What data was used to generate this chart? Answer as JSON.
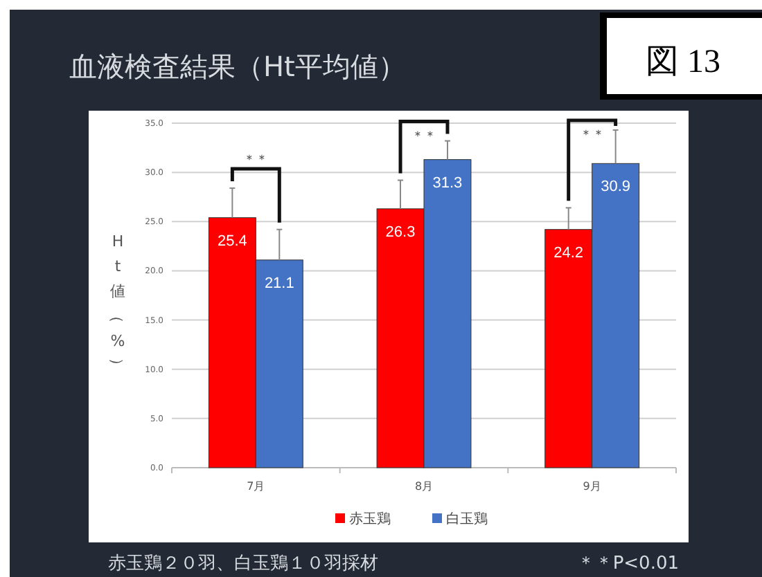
{
  "chart_data": {
    "type": "bar",
    "title": "血液検査結果（Ht平均値）",
    "ylabel": "Ht値（%）",
    "categories": [
      "7月",
      "8月",
      "9月"
    ],
    "series": [
      {
        "name": "赤玉鶏",
        "color": "#ff0000",
        "values": [
          25.4,
          26.3,
          24.2
        ],
        "errors": [
          [
            25.4,
            28.4
          ],
          [
            26.3,
            29.2
          ],
          [
            24.2,
            26.4
          ]
        ]
      },
      {
        "name": "白玉鶏",
        "color": "#4472c4",
        "values": [
          21.1,
          31.3,
          30.9
        ],
        "errors": [
          [
            21.1,
            24.2
          ],
          [
            31.3,
            33.2
          ],
          [
            30.9,
            34.3
          ]
        ]
      }
    ],
    "ylim": [
      0,
      35
    ],
    "yticks": [
      {
        "value": 0,
        "label": "0.0"
      },
      {
        "value": 5,
        "label": "5.0"
      },
      {
        "value": 10,
        "label": "10.0"
      },
      {
        "value": 15,
        "label": "15.0"
      },
      {
        "value": 20,
        "label": "20.0"
      },
      {
        "value": 25,
        "label": "25.0"
      },
      {
        "value": 30,
        "label": "30.0"
      },
      {
        "value": 35,
        "label": "35.0"
      }
    ],
    "grid": "y",
    "legend": "bottom",
    "data_labels": true,
    "annotations": [
      "図 13",
      "＊＊",
      "＊＊",
      "＊＊",
      "赤玉鶏２０羽、白玉鶏１０羽採材",
      "＊＊P<0.01"
    ]
  }
}
